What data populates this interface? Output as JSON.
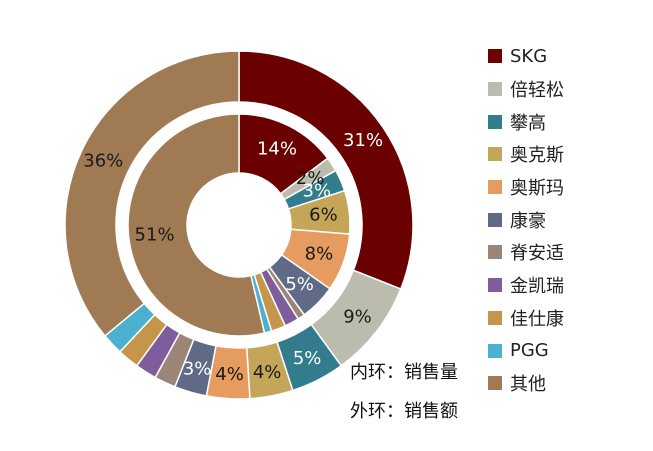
{
  "chart_data": {
    "type": "pie",
    "variant": "double-donut",
    "categories": [
      "SKG",
      "倍轻松",
      "攀高",
      "奥克斯",
      "奥斯玛",
      "康豪",
      "脊安适",
      "金凯瑞",
      "佳仕康",
      "PGG",
      "其他"
    ],
    "colors": [
      "#6b0000",
      "#bcbcae",
      "#337c8e",
      "#c5a557",
      "#e69b5f",
      "#5f6a86",
      "#9b8577",
      "#7f5c9b",
      "#c4954a",
      "#4cb1cf",
      "#a07a53"
    ],
    "series": [
      {
        "ring": "inner",
        "values": [
          14,
          2,
          3,
          6,
          8,
          5,
          1,
          2,
          2,
          1,
          51
        ],
        "labels": [
          "14%",
          "2%",
          "3%",
          "6%",
          "8%",
          "5%",
          "",
          "",
          "",
          "",
          "51%"
        ]
      },
      {
        "ring": "outer",
        "values": [
          31,
          9,
          5,
          4,
          4,
          3,
          2,
          2,
          2,
          2,
          36
        ],
        "labels": [
          "31%",
          "9%",
          "5%",
          "4%",
          "4%",
          "3%",
          "",
          "",
          "",
          "",
          "36%"
        ]
      }
    ],
    "legend_position": "right",
    "notes": [
      "内环：销售量",
      "外环：销售额"
    ]
  }
}
